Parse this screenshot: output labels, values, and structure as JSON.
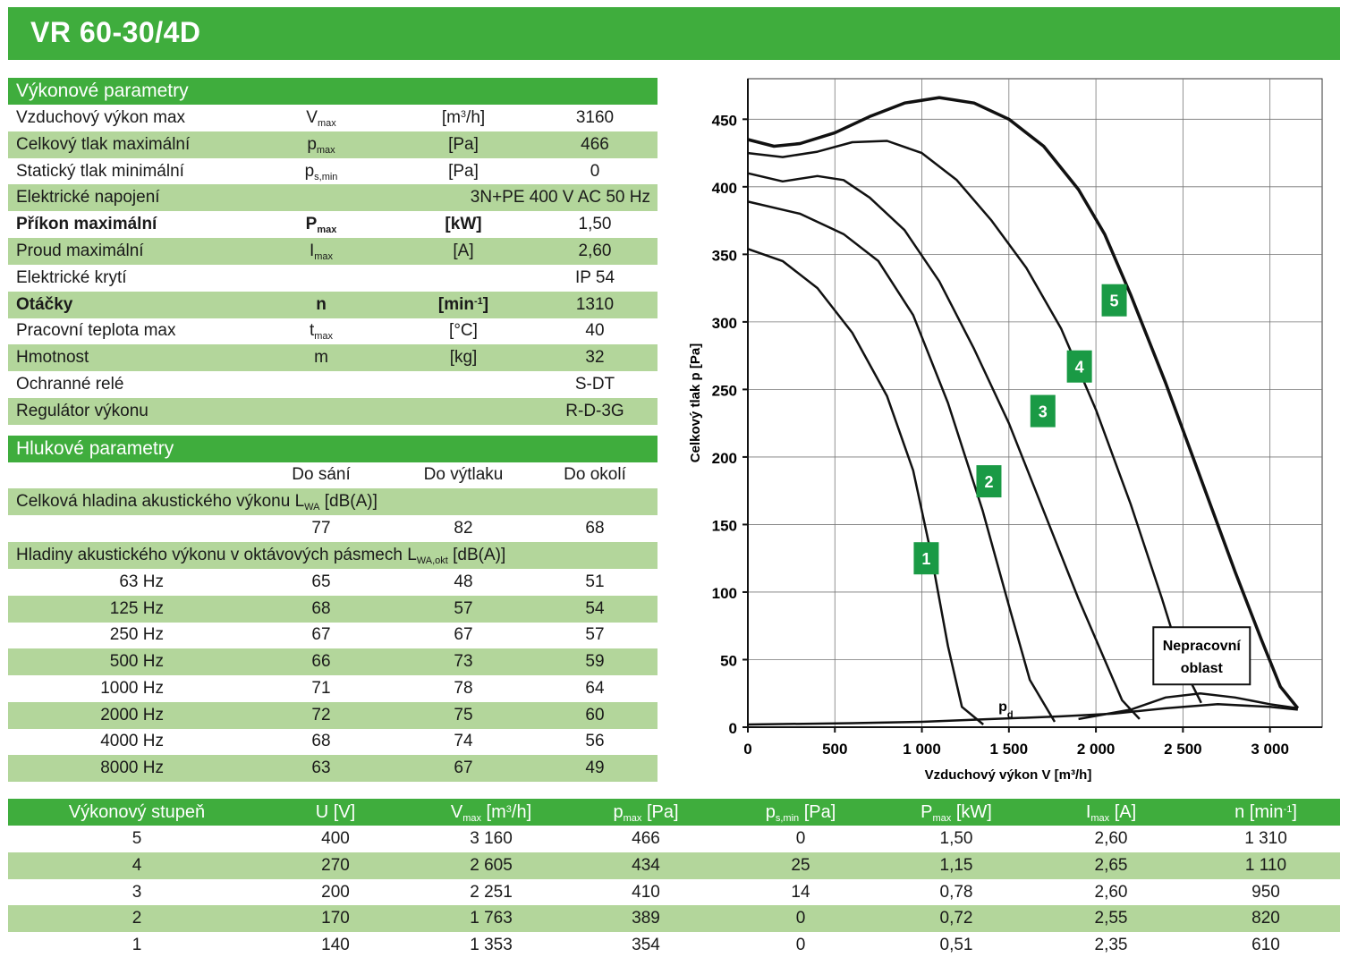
{
  "title": "VR 60-30/4D",
  "perf_section": "Výkonové parametry",
  "perf_rows": [
    {
      "label": "Vzduchový výkon max",
      "sym": "V",
      "sub": "max",
      "unit": "[m3/h]",
      "value": "3160"
    },
    {
      "label": "Celkový tlak maximální",
      "sym": "p",
      "sub": "max",
      "unit": "[Pa]",
      "value": "466"
    },
    {
      "label": "Statický tlak minimální",
      "sym": "p",
      "sub": "s,min",
      "unit": "[Pa]",
      "value": "0"
    },
    {
      "label": "Elektrické napojení",
      "value": "3N+PE 400 V AC 50 Hz"
    },
    {
      "label": "Příkon maximální",
      "sym": "P",
      "sub": "max",
      "unit": "[kW]",
      "value": "1,50"
    },
    {
      "label": "Proud maximální",
      "sym": "I",
      "sub": "max",
      "unit": "[A]",
      "value": "2,60"
    },
    {
      "label": "Elektrické krytí",
      "value": "IP 54"
    },
    {
      "label": "Otáčky",
      "sym": "n",
      "unit": "[min-1]",
      "value": "1310"
    },
    {
      "label": "Pracovní teplota max",
      "sym": "t",
      "sub": "max",
      "unit": "[°C]",
      "value": "40"
    },
    {
      "label": "Hmotnost",
      "sym": "m",
      "unit": "[kg]",
      "value": "32"
    },
    {
      "label": "Ochranné relé",
      "value": "S-DT"
    },
    {
      "label": "Regulátor výkonu",
      "value": "R-D-3G"
    }
  ],
  "noise_section": "Hlukové parametry",
  "noise_cols": [
    "Do sání",
    "Do výtlaku",
    "Do okolí"
  ],
  "lwa_label": "Celková hladina akustického výkonu L",
  "lwa_sub": "WA",
  "lwa_unit": "[dB(A)]",
  "lwa_values": [
    "77",
    "82",
    "68"
  ],
  "oct_label": "Hladiny akustického výkonu v oktávových pásmech L",
  "oct_sub": "WA,okt",
  "oct_unit": "[dB(A)]",
  "octaves": [
    {
      "f": "63 Hz",
      "v": [
        "65",
        "48",
        "51"
      ]
    },
    {
      "f": "125 Hz",
      "v": [
        "68",
        "57",
        "54"
      ]
    },
    {
      "f": "250 Hz",
      "v": [
        "67",
        "67",
        "57"
      ]
    },
    {
      "f": "500 Hz",
      "v": [
        "66",
        "73",
        "59"
      ]
    },
    {
      "f": "1000 Hz",
      "v": [
        "71",
        "78",
        "64"
      ]
    },
    {
      "f": "2000 Hz",
      "v": [
        "72",
        "75",
        "60"
      ]
    },
    {
      "f": "4000 Hz",
      "v": [
        "68",
        "74",
        "56"
      ]
    },
    {
      "f": "8000 Hz",
      "v": [
        "63",
        "67",
        "49"
      ]
    }
  ],
  "bottom_headers": [
    {
      "main": "Výkonový stupeň"
    },
    {
      "main": "U",
      "unit": "[V]"
    },
    {
      "main": "V",
      "sub": "max",
      "unit": "[m3/h]"
    },
    {
      "main": "p",
      "sub": "max",
      "unit": "[Pa]"
    },
    {
      "main": "p",
      "sub": "s,min",
      "unit": "[Pa]"
    },
    {
      "main": "P",
      "sub": "max",
      "unit": "[kW]"
    },
    {
      "main": "I",
      "sub": "max",
      "unit": "[A]"
    },
    {
      "main": "n",
      "unit": "[min-1]"
    }
  ],
  "bottom_rows": [
    [
      "5",
      "400",
      "3 160",
      "466",
      "0",
      "1,50",
      "2,60",
      "1 310"
    ],
    [
      "4",
      "270",
      "2 605",
      "434",
      "25",
      "1,15",
      "2,65",
      "1 110"
    ],
    [
      "3",
      "200",
      "2 251",
      "410",
      "14",
      "0,78",
      "2,60",
      "950"
    ],
    [
      "2",
      "170",
      "1 763",
      "389",
      "0",
      "0,72",
      "2,55",
      "820"
    ],
    [
      "1",
      "140",
      "1 353",
      "354",
      "0",
      "0,51",
      "2,35",
      "610"
    ]
  ],
  "colors": {
    "brand_green": "#3fad3d",
    "row_green": "#b3d69b"
  },
  "chart_data": {
    "type": "line",
    "xlabel": "Vzduchový výkon V [m³/h]",
    "ylabel": "Celkový tlak p [Pa]",
    "xlim": [
      0,
      3300
    ],
    "ylim": [
      0,
      480
    ],
    "xticks": [
      "0",
      "500",
      "1 000",
      "1 500",
      "2 000",
      "2 500",
      "3 000"
    ],
    "xtick_values": [
      0,
      500,
      1000,
      1500,
      2000,
      2500,
      3000
    ],
    "yticks": [
      "0",
      "50",
      "100",
      "150",
      "200",
      "250",
      "300",
      "350",
      "400",
      "450"
    ],
    "ytick_values": [
      0,
      50,
      100,
      150,
      200,
      250,
      300,
      350,
      400,
      450
    ],
    "grid": true,
    "series": [
      {
        "name": "1",
        "points": [
          [
            0,
            354
          ],
          [
            200,
            345
          ],
          [
            400,
            325
          ],
          [
            600,
            292
          ],
          [
            800,
            245
          ],
          [
            950,
            190
          ],
          [
            1050,
            130
          ],
          [
            1150,
            60
          ],
          [
            1230,
            15
          ],
          [
            1353,
            2
          ]
        ]
      },
      {
        "name": "2",
        "points": [
          [
            0,
            389
          ],
          [
            300,
            380
          ],
          [
            550,
            365
          ],
          [
            750,
            345
          ],
          [
            950,
            305
          ],
          [
            1150,
            240
          ],
          [
            1350,
            160
          ],
          [
            1500,
            90
          ],
          [
            1620,
            35
          ],
          [
            1763,
            4
          ]
        ]
      },
      {
        "name": "3",
        "points": [
          [
            0,
            410
          ],
          [
            200,
            404
          ],
          [
            400,
            408
          ],
          [
            550,
            405
          ],
          [
            700,
            392
          ],
          [
            900,
            368
          ],
          [
            1100,
            330
          ],
          [
            1300,
            280
          ],
          [
            1500,
            225
          ],
          [
            1700,
            160
          ],
          [
            1900,
            95
          ],
          [
            2050,
            50
          ],
          [
            2150,
            20
          ],
          [
            2251,
            6
          ]
        ]
      },
      {
        "name": "4",
        "points": [
          [
            0,
            425
          ],
          [
            200,
            422
          ],
          [
            400,
            426
          ],
          [
            600,
            433
          ],
          [
            800,
            434
          ],
          [
            1000,
            425
          ],
          [
            1200,
            405
          ],
          [
            1400,
            375
          ],
          [
            1600,
            340
          ],
          [
            1800,
            295
          ],
          [
            2000,
            235
          ],
          [
            2200,
            165
          ],
          [
            2380,
            95
          ],
          [
            2500,
            45
          ],
          [
            2605,
            18
          ]
        ]
      },
      {
        "name": "5",
        "points": [
          [
            0,
            435
          ],
          [
            150,
            430
          ],
          [
            300,
            432
          ],
          [
            500,
            440
          ],
          [
            700,
            452
          ],
          [
            900,
            462
          ],
          [
            1100,
            466
          ],
          [
            1300,
            462
          ],
          [
            1500,
            450
          ],
          [
            1700,
            430
          ],
          [
            1900,
            398
          ],
          [
            2050,
            365
          ],
          [
            2200,
            320
          ],
          [
            2400,
            255
          ],
          [
            2600,
            185
          ],
          [
            2800,
            115
          ],
          [
            2950,
            65
          ],
          [
            3060,
            30
          ],
          [
            3160,
            14
          ]
        ]
      },
      {
        "name": "pd",
        "points": [
          [
            0,
            2
          ],
          [
            600,
            3
          ],
          [
            1000,
            4
          ],
          [
            1400,
            6
          ],
          [
            1800,
            8
          ],
          [
            2100,
            10
          ],
          [
            2400,
            14
          ],
          [
            2700,
            17
          ],
          [
            3000,
            15
          ],
          [
            3160,
            13
          ]
        ]
      }
    ],
    "npo_boundary": [
      [
        1900,
        6
      ],
      [
        2200,
        13
      ],
      [
        2400,
        22
      ],
      [
        2600,
        25
      ],
      [
        2800,
        22
      ],
      [
        3000,
        17
      ],
      [
        3160,
        14
      ]
    ],
    "labels": [
      {
        "text": "1",
        "x": 1020,
        "y": 125
      },
      {
        "text": "2",
        "x": 1380,
        "y": 182
      },
      {
        "text": "3",
        "x": 1690,
        "y": 234
      },
      {
        "text": "4",
        "x": 1900,
        "y": 267
      },
      {
        "text": "5",
        "x": 2100,
        "y": 316
      }
    ],
    "pd_label": "p",
    "pd_sub": "d",
    "npo_text": [
      "Nepracovní",
      "oblast"
    ]
  }
}
